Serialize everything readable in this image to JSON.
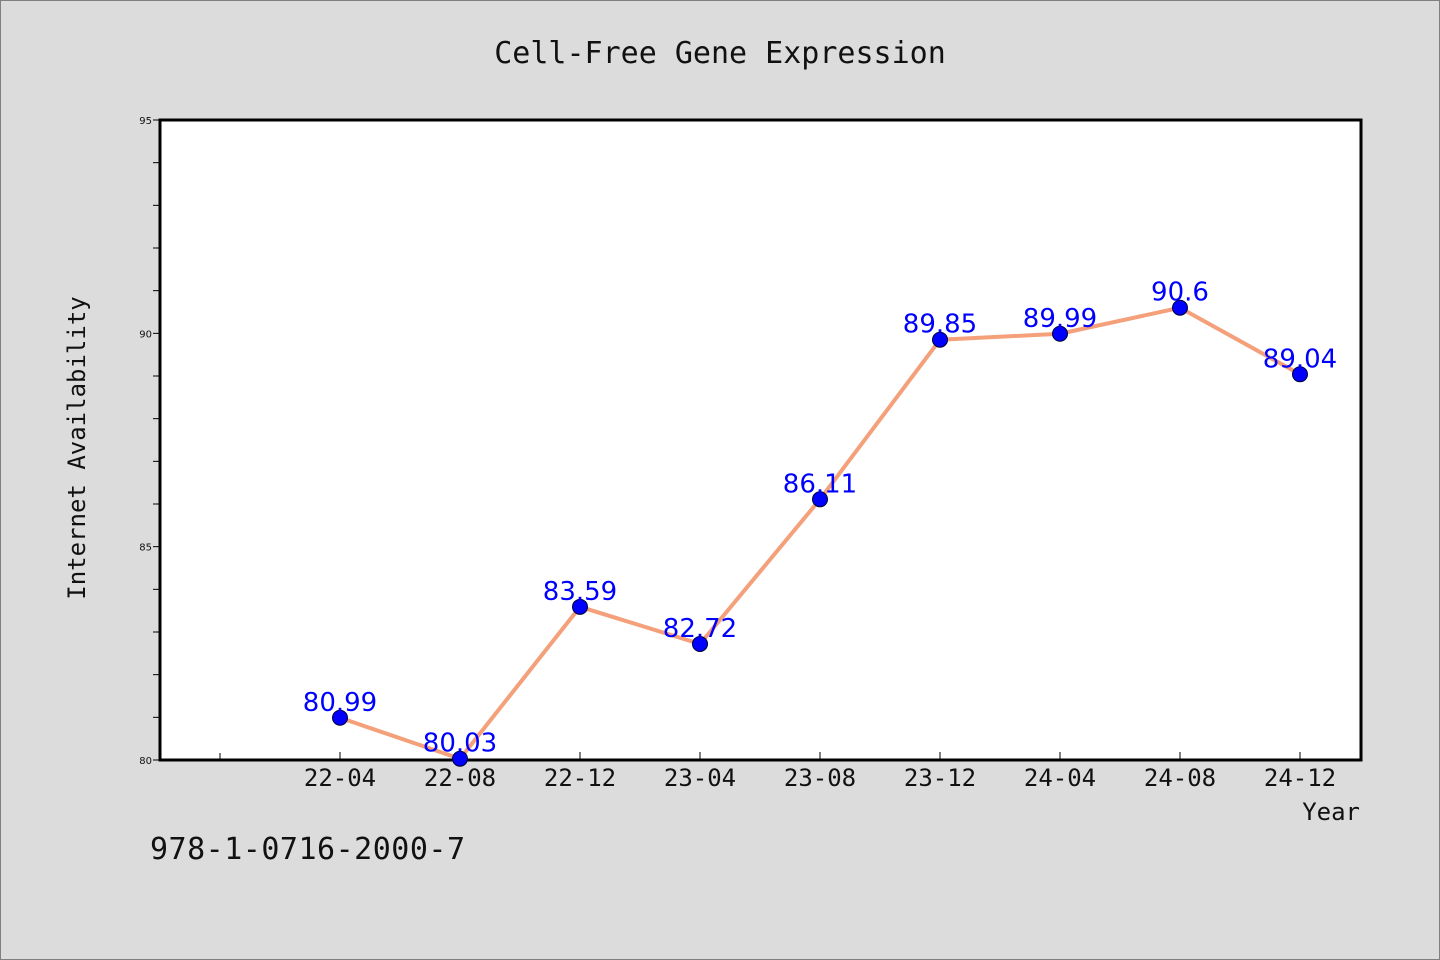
{
  "chart_data": {
    "type": "line",
    "title": "Cell-Free Gene Expression",
    "xlabel": "Year",
    "ylabel": "Internet Availability",
    "x": [
      "22-04",
      "22-08",
      "22-12",
      "23-04",
      "23-08",
      "23-12",
      "24-04",
      "24-08",
      "24-12"
    ],
    "values": [
      80.99,
      80.03,
      83.59,
      82.72,
      86.11,
      89.85,
      89.99,
      90.6,
      89.04
    ],
    "data_labels": [
      "80.99",
      "80.03",
      "83.59",
      "82.72",
      "86.11",
      "89.85",
      "89.99",
      "90.6",
      "89.04"
    ],
    "ylim": [
      80,
      95
    ],
    "yticks": [
      80,
      85,
      90,
      95
    ],
    "grid": false,
    "line_color": "#f4a07a",
    "marker_color": "#0000ff",
    "label_color": "#0000ff",
    "plot_background": "#ffffff",
    "page_background": "#dcdcdc"
  },
  "footer": {
    "identifier": "978-1-0716-2000-7"
  }
}
